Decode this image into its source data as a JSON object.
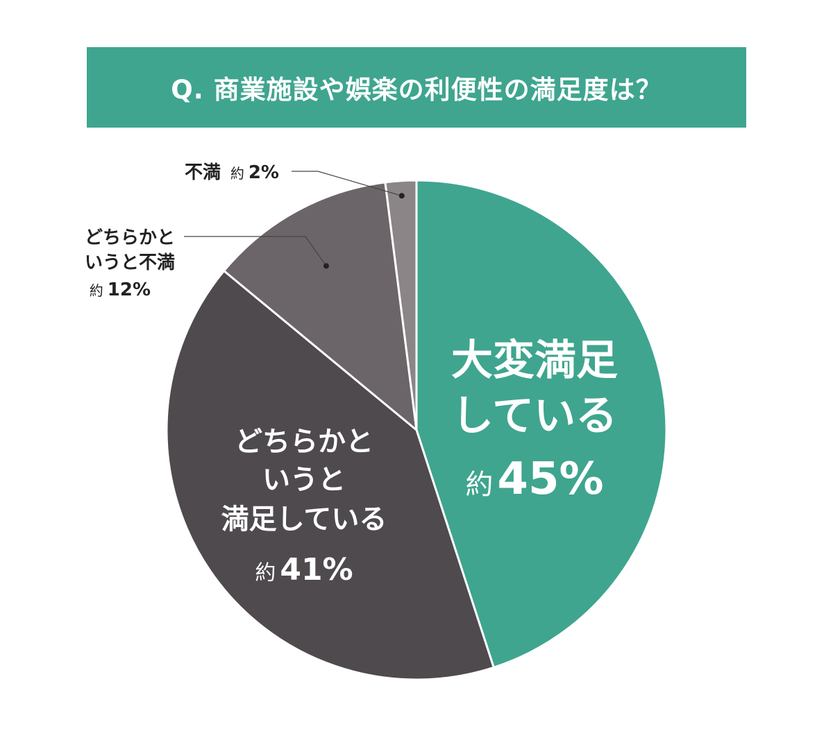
{
  "title": "Q. 商業施設や娯楽の利便性の満足度は？",
  "colors": {
    "title_bg": "#3fa58f",
    "very_satisfied": "#3fa58f",
    "somewhat_satisfied": "#4e4a4e",
    "somewhat_dissatisfied": "#6b6569",
    "dissatisfied": "#8b8588",
    "divider": "#ffffff",
    "leader_line": "#444444"
  },
  "chart_data": {
    "type": "pie",
    "title": "Q. 商業施設や娯楽の利便性の満足度は？",
    "start_angle_deg": 0,
    "direction": "clockwise",
    "slices": [
      {
        "category": "大変満足している",
        "label_lines": [
          "大変満足",
          "している"
        ],
        "value": 45,
        "value_text": "約45%",
        "prefix": "約",
        "number": "45%",
        "color": "#3fa58f",
        "label_position": "inside"
      },
      {
        "category": "どちらかというと満足している",
        "label_lines": [
          "どちらかと",
          "いうと",
          "満足している"
        ],
        "value": 41,
        "value_text": "約41%",
        "prefix": "約",
        "number": "41%",
        "color": "#4e4a4e",
        "label_position": "inside"
      },
      {
        "category": "どちらかというと不満",
        "label_lines": [
          "どちらかと",
          "いうと不満"
        ],
        "value": 12,
        "value_text": "約12%",
        "prefix": "約",
        "number": "12%",
        "color": "#6b6569",
        "label_position": "outside-left"
      },
      {
        "category": "不満",
        "label_lines": [
          "不満"
        ],
        "value": 2,
        "value_text": "約2%",
        "prefix": "約",
        "number": "2%",
        "color": "#8b8588",
        "label_position": "outside-top-left"
      }
    ]
  }
}
